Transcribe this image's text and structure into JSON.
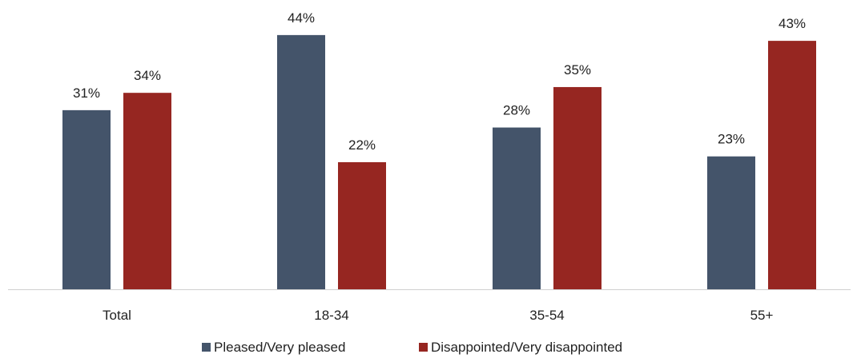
{
  "chart_data": {
    "type": "bar",
    "categories": [
      "Total",
      "18-34",
      "35-54",
      "55+"
    ],
    "series": [
      {
        "name": "Pleased/Very pleased",
        "values": [
          31,
          44,
          28,
          23
        ],
        "labels": [
          "31%",
          "44%",
          "28%",
          "23%"
        ],
        "color": "#44546a"
      },
      {
        "name": "Disappointed/Very disappointed",
        "values": [
          34,
          22,
          35,
          43
        ],
        "labels": [
          "34%",
          "22%",
          "35%",
          "43%"
        ],
        "color": "#962621"
      }
    ],
    "title": "",
    "xlabel": "",
    "ylabel": "",
    "ylim": [
      0,
      50
    ],
    "value_format": "percent",
    "grid": false,
    "legend_position": "bottom"
  }
}
